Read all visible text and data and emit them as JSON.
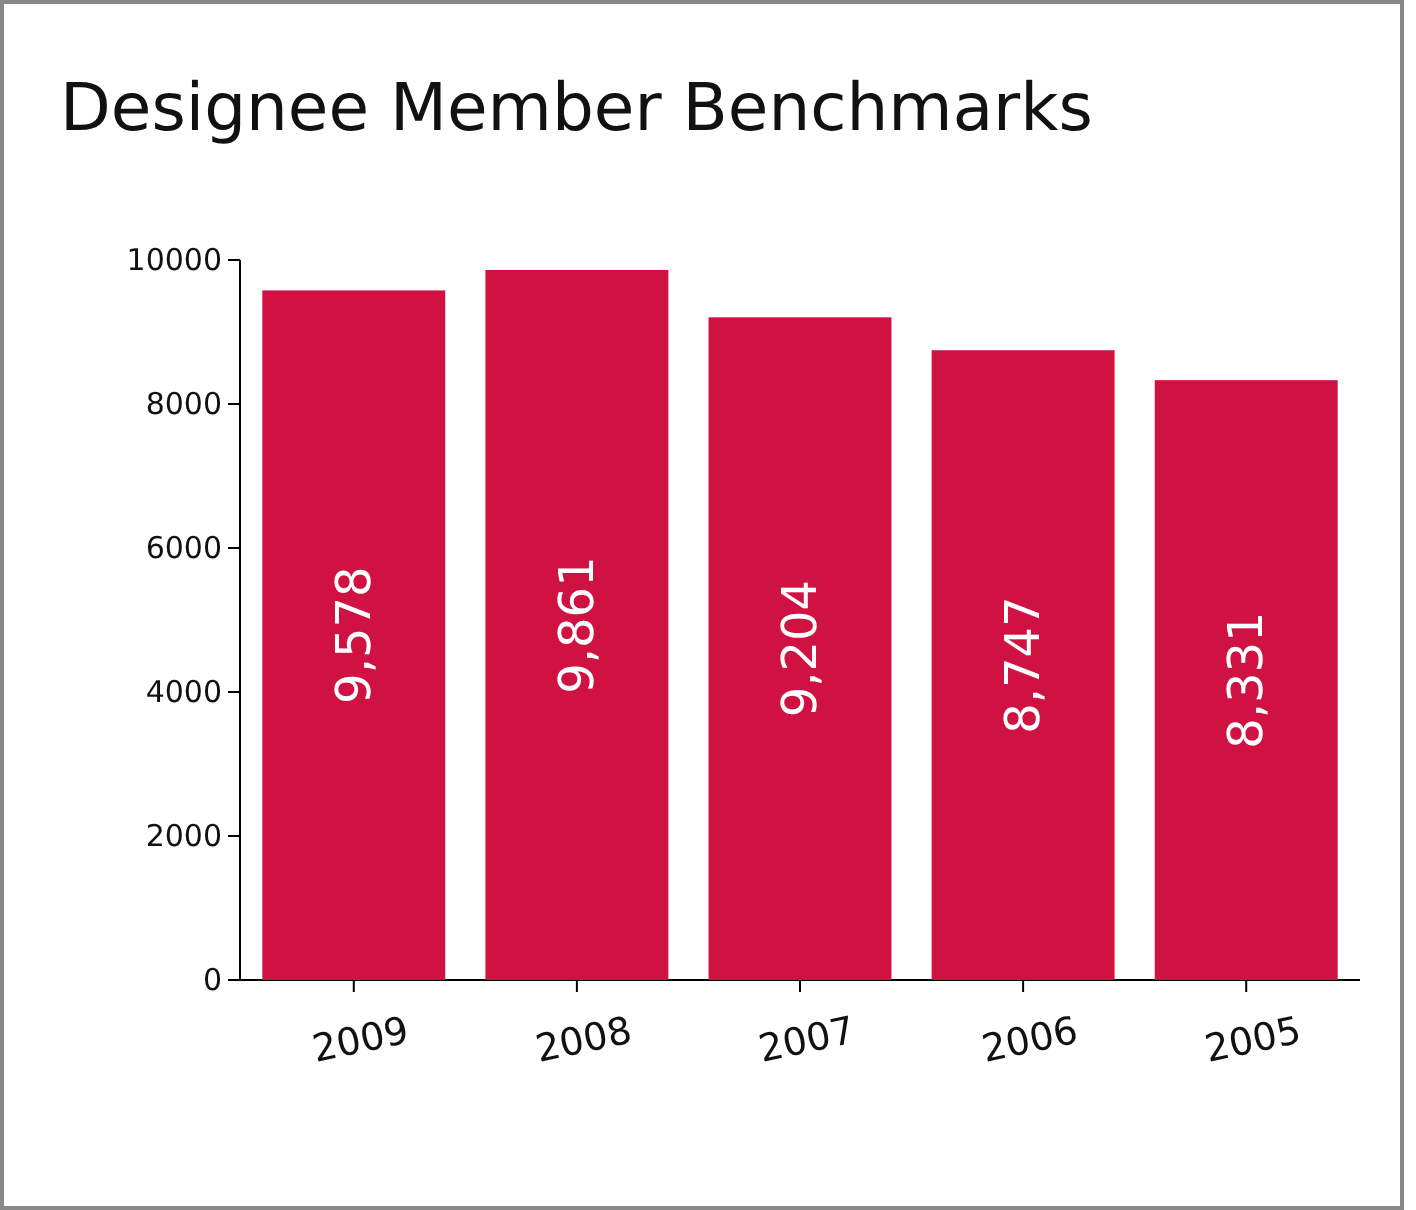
{
  "chart_data": {
    "type": "bar",
    "title": "Designee Member Benchmarks",
    "categories": [
      "2009",
      "2008",
      "2007",
      "2006",
      "2005"
    ],
    "values": [
      9578,
      9861,
      9204,
      8747,
      8331
    ],
    "value_labels": [
      "9,578",
      "9,861",
      "9,204",
      "8,747",
      "8,331"
    ],
    "color": "#d01243",
    "ylim": [
      0,
      10000
    ],
    "yticks": [
      0,
      2000,
      4000,
      6000,
      8000,
      10000
    ],
    "grid": false
  }
}
